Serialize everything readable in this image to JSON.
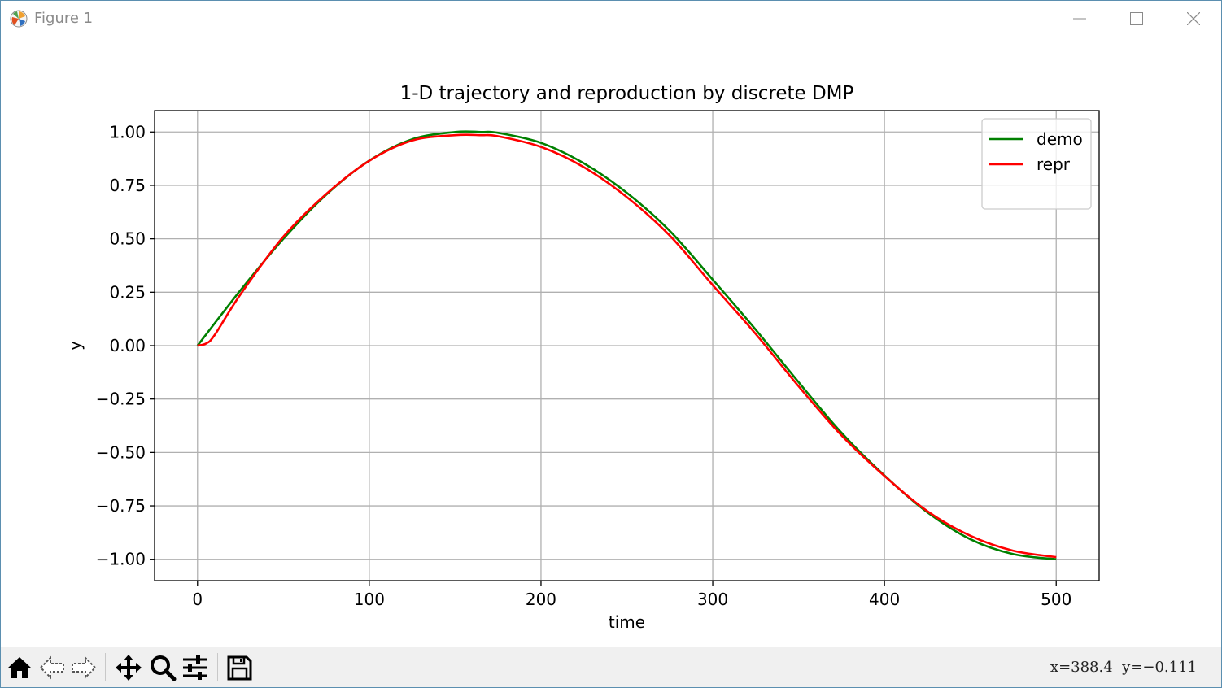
{
  "window": {
    "title": "Figure 1",
    "app_icon": "matplotlib-icon",
    "controls": [
      "minimize-icon",
      "maximize-icon",
      "close-icon"
    ]
  },
  "toolbar": {
    "buttons": [
      {
        "name": "home-button",
        "icon": "home-icon"
      },
      {
        "name": "back-button",
        "icon": "back-arrow-icon"
      },
      {
        "name": "forward-button",
        "icon": "forward-arrow-icon"
      },
      {
        "name": "pan-button",
        "icon": "move-icon"
      },
      {
        "name": "zoom-button",
        "icon": "magnifier-icon"
      },
      {
        "name": "configure-subplots-button",
        "icon": "sliders-icon"
      },
      {
        "name": "save-button",
        "icon": "floppy-disk-icon"
      }
    ],
    "coords": "x=388.4  y=−0.111"
  },
  "chart_data": {
    "type": "line",
    "title": "1-D trajectory and reproduction by discrete DMP",
    "xlabel": "time",
    "ylabel": "y",
    "xlim": [
      -25,
      525
    ],
    "ylim": [
      -1.1,
      1.1
    ],
    "xticks": [
      "0",
      "100",
      "200",
      "300",
      "400",
      "500"
    ],
    "xtick_values": [
      0,
      100,
      200,
      300,
      400,
      500
    ],
    "yticks": [
      "−1.00",
      "−0.75",
      "−0.50",
      "−0.25",
      "0.00",
      "0.25",
      "0.50",
      "0.75",
      "1.00"
    ],
    "ytick_values": [
      -1.0,
      -0.75,
      -0.5,
      -0.25,
      0.0,
      0.25,
      0.5,
      0.75,
      1.0
    ],
    "grid": true,
    "legend": "top-right",
    "series": [
      {
        "name": "demo",
        "color": "#008000",
        "x": [
          0,
          25,
          50,
          75,
          100,
          125,
          150,
          165,
          175,
          200,
          225,
          250,
          275,
          300,
          325,
          350,
          375,
          400,
          425,
          450,
          475,
          500
        ],
        "y": [
          0.0,
          0.259,
          0.5,
          0.707,
          0.866,
          0.966,
          1.0,
          1.0,
          0.996,
          0.949,
          0.853,
          0.715,
          0.537,
          0.309,
          0.075,
          -0.171,
          -0.408,
          -0.608,
          -0.78,
          -0.906,
          -0.976,
          -1.0
        ]
      },
      {
        "name": "repr",
        "color": "#ff0000",
        "x": [
          0,
          5,
          10,
          25,
          50,
          75,
          100,
          125,
          150,
          165,
          175,
          200,
          225,
          250,
          275,
          300,
          325,
          350,
          375,
          400,
          425,
          450,
          475,
          500
        ],
        "y": [
          0.0,
          0.01,
          0.05,
          0.24,
          0.51,
          0.71,
          0.865,
          0.96,
          0.985,
          0.985,
          0.98,
          0.93,
          0.835,
          0.695,
          0.515,
          0.283,
          0.055,
          -0.19,
          -0.42,
          -0.61,
          -0.775,
          -0.89,
          -0.96,
          -0.99
        ]
      }
    ]
  }
}
